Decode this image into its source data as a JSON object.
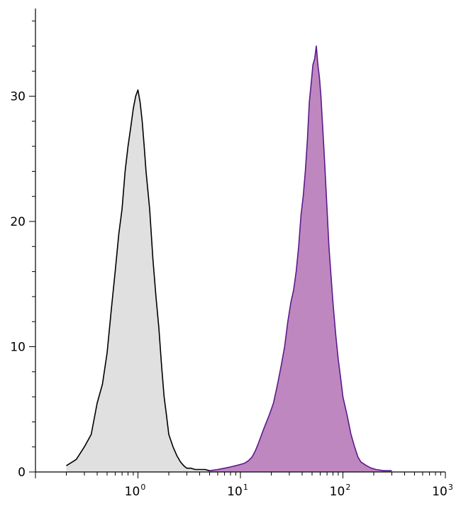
{
  "chart_data": {
    "type": "area",
    "title": "",
    "xlabel": "",
    "ylabel": "",
    "x_scale": "log",
    "xlim": [
      0.1,
      1000
    ],
    "ylim": [
      0,
      37
    ],
    "grid": false,
    "legend": "none",
    "x_ticks": [
      {
        "base": "10",
        "exp": "0",
        "value": 1
      },
      {
        "base": "10",
        "exp": "1",
        "value": 10
      },
      {
        "base": "10",
        "exp": "2",
        "value": 100
      },
      {
        "base": "10",
        "exp": "3",
        "value": 1000
      }
    ],
    "y_ticks": [
      0,
      10,
      20,
      30
    ],
    "series": [
      {
        "fill": "#e0e0e0",
        "stroke": "#000000",
        "x": [
          0.2,
          0.25,
          0.3,
          0.35,
          0.4,
          0.45,
          0.5,
          0.55,
          0.6,
          0.65,
          0.7,
          0.75,
          0.8,
          0.85,
          0.9,
          0.95,
          1.0,
          1.05,
          1.1,
          1.15,
          1.2,
          1.3,
          1.4,
          1.5,
          1.6,
          1.7,
          1.8,
          1.9,
          2.0,
          2.2,
          2.4,
          2.6,
          2.8,
          3.0,
          3.3,
          3.6,
          4.0,
          4.5,
          5.0
        ],
        "values": [
          0.5,
          1.0,
          2.0,
          3.0,
          5.5,
          7.0,
          9.5,
          13.0,
          16.0,
          19.0,
          21.0,
          24.0,
          26.0,
          27.5,
          29.0,
          30.0,
          30.5,
          29.5,
          28.0,
          26.0,
          24.0,
          21.0,
          17.0,
          14.0,
          11.5,
          8.5,
          6.0,
          4.5,
          3.0,
          2.0,
          1.3,
          0.8,
          0.5,
          0.3,
          0.3,
          0.2,
          0.2,
          0.2,
          0.1
        ]
      },
      {
        "fill": "#bf87c0",
        "stroke": "#5b1a8a",
        "x": [
          5,
          6,
          7,
          8,
          9,
          10,
          11,
          12,
          13,
          14,
          15,
          17,
          19,
          21,
          23,
          25,
          27,
          29,
          31,
          33,
          35,
          37,
          39,
          41,
          43,
          45,
          47,
          49,
          51,
          53,
          55,
          57,
          59,
          61,
          63,
          65,
          67,
          70,
          73,
          76,
          80,
          85,
          90,
          95,
          100,
          110,
          120,
          130,
          140,
          150,
          170,
          190,
          210,
          250,
          300
        ],
        "values": [
          0.1,
          0.2,
          0.3,
          0.4,
          0.5,
          0.6,
          0.7,
          0.9,
          1.2,
          1.7,
          2.3,
          3.5,
          4.5,
          5.5,
          7.0,
          8.5,
          10.0,
          12.0,
          13.5,
          14.5,
          16.0,
          18.0,
          20.5,
          22.0,
          24.0,
          26.5,
          29.5,
          31.0,
          32.5,
          33.0,
          34.0,
          32.5,
          31.5,
          30.0,
          28.0,
          26.0,
          24.0,
          21.0,
          18.0,
          16.0,
          13.5,
          11.0,
          9.0,
          7.5,
          6.0,
          4.5,
          3.0,
          2.0,
          1.2,
          0.8,
          0.5,
          0.3,
          0.2,
          0.1,
          0.1
        ]
      }
    ]
  }
}
